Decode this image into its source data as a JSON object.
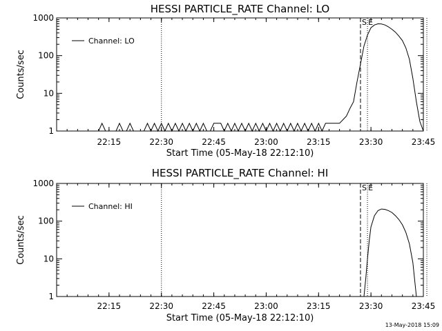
{
  "page": {
    "footer_timestamp": "13-May-2018 15:09"
  },
  "chart_data": [
    {
      "type": "line",
      "title": "HESSI PARTICLE_RATE Channel: LO",
      "xlabel": "Start Time (05-May-18 22:12:10)",
      "ylabel": "Counts/sec",
      "yscale": "log",
      "ylim": [
        1,
        1000
      ],
      "xlim_minutes": [
        22.0,
        23.75
      ],
      "x_ticks": [
        "22:15",
        "22:30",
        "22:45",
        "23:00",
        "23:15",
        "23:30",
        "23:45"
      ],
      "y_ticks": [
        "1",
        "10",
        "100",
        "1000"
      ],
      "legend": {
        "label": "Channel: LO",
        "position": "top-left"
      },
      "markers": [
        {
          "time": "22:30",
          "style": "dotted"
        },
        {
          "time": "23:27",
          "style": "dashed",
          "label": "S"
        },
        {
          "time": "23:29",
          "style": "dotted",
          "label": "E"
        },
        {
          "time": "23:45",
          "style": "dashed"
        },
        {
          "time": "23:46",
          "style": "dotted"
        }
      ],
      "series": [
        {
          "name": "Channel: LO",
          "points": [
            [
              "22:12",
              1
            ],
            [
              "22:13",
              1.6
            ],
            [
              "22:14",
              1
            ],
            [
              "22:17",
              1
            ],
            [
              "22:18",
              1.6
            ],
            [
              "22:19",
              1
            ],
            [
              "22:20",
              1
            ],
            [
              "22:21",
              1.6
            ],
            [
              "22:22",
              1
            ],
            [
              "22:25",
              1
            ],
            [
              "22:26",
              1.6
            ],
            [
              "22:27",
              1
            ],
            [
              "22:28",
              1.6
            ],
            [
              "22:29",
              1
            ],
            [
              "22:30",
              1.6
            ],
            [
              "22:31",
              1
            ],
            [
              "22:32",
              1.6
            ],
            [
              "22:33",
              1
            ],
            [
              "22:34",
              1.6
            ],
            [
              "22:35",
              1
            ],
            [
              "22:36",
              1.6
            ],
            [
              "22:37",
              1
            ],
            [
              "22:38",
              1.6
            ],
            [
              "22:39",
              1
            ],
            [
              "22:40",
              1.6
            ],
            [
              "22:41",
              1
            ],
            [
              "22:42",
              1.6
            ],
            [
              "22:43",
              1
            ],
            [
              "22:44",
              1
            ],
            [
              "22:45",
              1.6
            ],
            [
              "22:47",
              1.6
            ],
            [
              "22:48",
              1
            ],
            [
              "22:49",
              1.6
            ],
            [
              "22:50",
              1
            ],
            [
              "22:51",
              1.6
            ],
            [
              "22:52",
              1
            ],
            [
              "22:53",
              1.6
            ],
            [
              "22:54",
              1
            ],
            [
              "22:55",
              1.6
            ],
            [
              "22:56",
              1
            ],
            [
              "22:57",
              1.6
            ],
            [
              "22:58",
              1
            ],
            [
              "22:59",
              1.6
            ],
            [
              "23:00",
              1
            ],
            [
              "23:01",
              1.6
            ],
            [
              "23:02",
              1
            ],
            [
              "23:03",
              1.6
            ],
            [
              "23:04",
              1
            ],
            [
              "23:05",
              1.6
            ],
            [
              "23:06",
              1
            ],
            [
              "23:07",
              1.6
            ],
            [
              "23:08",
              1
            ],
            [
              "23:09",
              1.6
            ],
            [
              "23:10",
              1
            ],
            [
              "23:11",
              1.6
            ],
            [
              "23:12",
              1
            ],
            [
              "23:13",
              1.6
            ],
            [
              "23:14",
              1
            ],
            [
              "23:15",
              1.6
            ],
            [
              "23:16",
              1
            ],
            [
              "23:17",
              1.6
            ],
            [
              "23:18",
              1.6
            ],
            [
              "23:20",
              1.6
            ],
            [
              "23:21",
              1.6
            ],
            [
              "23:22",
              2
            ],
            [
              "23:23",
              2.5
            ],
            [
              "23:24",
              4
            ],
            [
              "23:25",
              6
            ],
            [
              "23:26",
              20
            ],
            [
              "23:27",
              60
            ],
            [
              "23:28",
              180
            ],
            [
              "23:29",
              350
            ],
            [
              "23:30",
              550
            ],
            [
              "23:31",
              650
            ],
            [
              "23:32",
              700
            ],
            [
              "23:33",
              690
            ],
            [
              "23:34",
              650
            ],
            [
              "23:35",
              580
            ],
            [
              "23:36",
              500
            ],
            [
              "23:37",
              420
            ],
            [
              "23:38",
              330
            ],
            [
              "23:39",
              250
            ],
            [
              "23:40",
              160
            ],
            [
              "23:41",
              80
            ],
            [
              "23:42",
              25
            ],
            [
              "23:43",
              6
            ],
            [
              "23:44",
              1.8
            ],
            [
              "23:45",
              1
            ]
          ]
        }
      ]
    },
    {
      "type": "line",
      "title": "HESSI PARTICLE_RATE Channel: HI",
      "xlabel": "Start Time (05-May-18 22:12:10)",
      "ylabel": "Counts/sec",
      "yscale": "log",
      "ylim": [
        1,
        1000
      ],
      "xlim_minutes": [
        22.0,
        23.75
      ],
      "x_ticks": [
        "22:15",
        "22:30",
        "22:45",
        "23:00",
        "23:15",
        "23:30",
        "23:45"
      ],
      "y_ticks": [
        "1",
        "10",
        "100",
        "1000"
      ],
      "legend": {
        "label": "Channel: HI",
        "position": "top-left"
      },
      "markers": [
        {
          "time": "22:30",
          "style": "dotted"
        },
        {
          "time": "23:27",
          "style": "dashed",
          "label": "S"
        },
        {
          "time": "23:29",
          "style": "dotted",
          "label": "E"
        },
        {
          "time": "23:45",
          "style": "dashed"
        },
        {
          "time": "23:46",
          "style": "dotted"
        }
      ],
      "series": [
        {
          "name": "Channel: HI",
          "points": [
            [
              "23:28",
              1
            ],
            [
              "23:28.5",
              3
            ],
            [
              "23:29",
              10
            ],
            [
              "23:29.5",
              30
            ],
            [
              "23:30",
              70
            ],
            [
              "23:31",
              140
            ],
            [
              "23:32",
              190
            ],
            [
              "23:33",
              210
            ],
            [
              "23:34",
              205
            ],
            [
              "23:35",
              190
            ],
            [
              "23:36",
              170
            ],
            [
              "23:37",
              140
            ],
            [
              "23:38",
              110
            ],
            [
              "23:39",
              80
            ],
            [
              "23:40",
              50
            ],
            [
              "23:41",
              25
            ],
            [
              "23:42",
              8
            ],
            [
              "23:43",
              1
            ]
          ]
        }
      ]
    }
  ]
}
